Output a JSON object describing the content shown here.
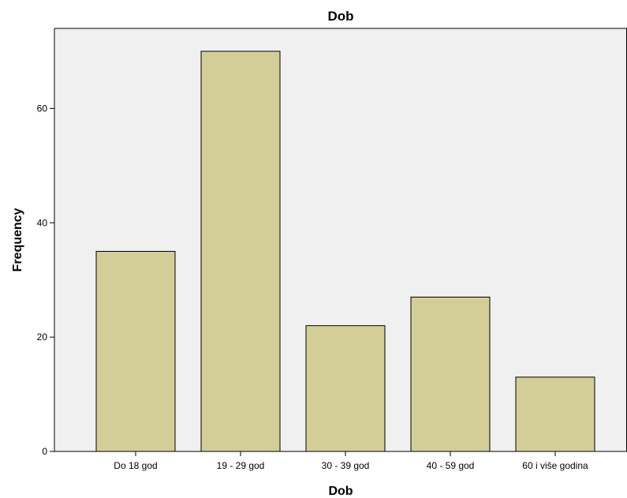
{
  "chart_data": {
    "type": "bar",
    "title": "Dob",
    "xlabel": "Dob",
    "ylabel": "Frequency",
    "categories": [
      "Do 18 god",
      "19 - 29 god",
      "30 - 39 god",
      "40 - 59 god",
      "60 i više godina"
    ],
    "values": [
      35,
      70,
      22,
      27,
      13
    ],
    "ylim": [
      0,
      74
    ],
    "yticks": [
      "0",
      "20",
      "40",
      "60"
    ],
    "grid": false,
    "legend": "none",
    "colors": {
      "bar_fill": "#d3ce97",
      "bar_stroke": "#000000",
      "plot_background": "#f0f0f0"
    }
  }
}
